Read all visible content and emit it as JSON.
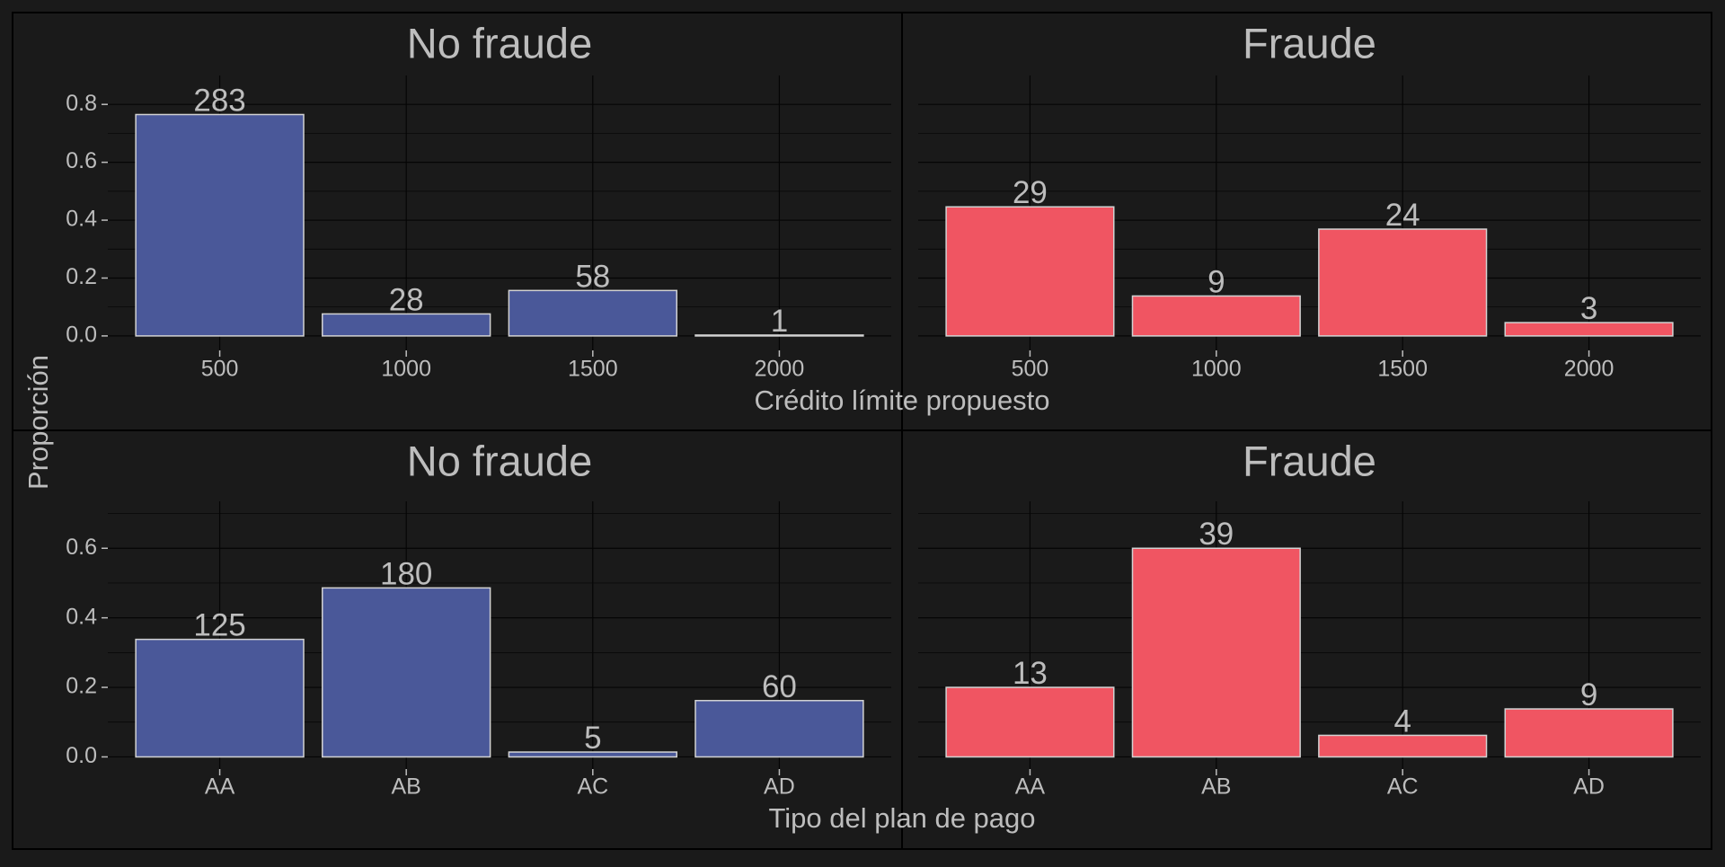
{
  "colors": {
    "background": "#1a1a1a",
    "grid": "#050505",
    "text": "#bdbdbd",
    "bar_stroke": "#d2d2d2",
    "no_fraude": "#4a5899",
    "fraude": "#f05562"
  },
  "y_axis_label": "Proporción",
  "chart_data": [
    {
      "type": "bar",
      "title": "No fraude",
      "categories": [
        "500",
        "1000",
        "1500",
        "2000"
      ],
      "values": [
        0.765,
        0.076,
        0.157,
        0.003
      ],
      "labels": [
        "283",
        "28",
        "58",
        "1"
      ],
      "yticks": [
        0.0,
        0.2,
        0.4,
        0.6,
        0.8
      ],
      "ylim": [
        -0.05,
        0.9
      ],
      "color_key": "no_fraude",
      "show_yaxis": true,
      "xlabel": "Crédito límite propuesto",
      "grid": true
    },
    {
      "type": "bar",
      "title": "Fraude",
      "categories": [
        "500",
        "1000",
        "1500",
        "2000"
      ],
      "values": [
        0.446,
        0.138,
        0.369,
        0.046
      ],
      "labels": [
        "29",
        "9",
        "24",
        "3"
      ],
      "yticks": [
        0.0,
        0.2,
        0.4,
        0.6,
        0.8
      ],
      "ylim": [
        -0.05,
        0.9
      ],
      "color_key": "fraude",
      "show_yaxis": false,
      "grid": true
    },
    {
      "type": "bar",
      "title": "No fraude",
      "categories": [
        "AA",
        "AB",
        "AC",
        "AD"
      ],
      "values": [
        0.338,
        0.486,
        0.014,
        0.162
      ],
      "labels": [
        "125",
        "180",
        "5",
        "60"
      ],
      "yticks": [
        0.0,
        0.2,
        0.4,
        0.6
      ],
      "ylim": [
        -0.035,
        0.735
      ],
      "color_key": "no_fraude",
      "show_yaxis": true,
      "xlabel": "Tipo del plan de pago",
      "grid": true
    },
    {
      "type": "bar",
      "title": "Fraude",
      "categories": [
        "AA",
        "AB",
        "AC",
        "AD"
      ],
      "values": [
        0.2,
        0.6,
        0.062,
        0.138
      ],
      "labels": [
        "13",
        "39",
        "4",
        "9"
      ],
      "yticks": [
        0.0,
        0.2,
        0.4,
        0.6
      ],
      "ylim": [
        -0.035,
        0.735
      ],
      "color_key": "fraude",
      "show_yaxis": false,
      "grid": true
    }
  ]
}
